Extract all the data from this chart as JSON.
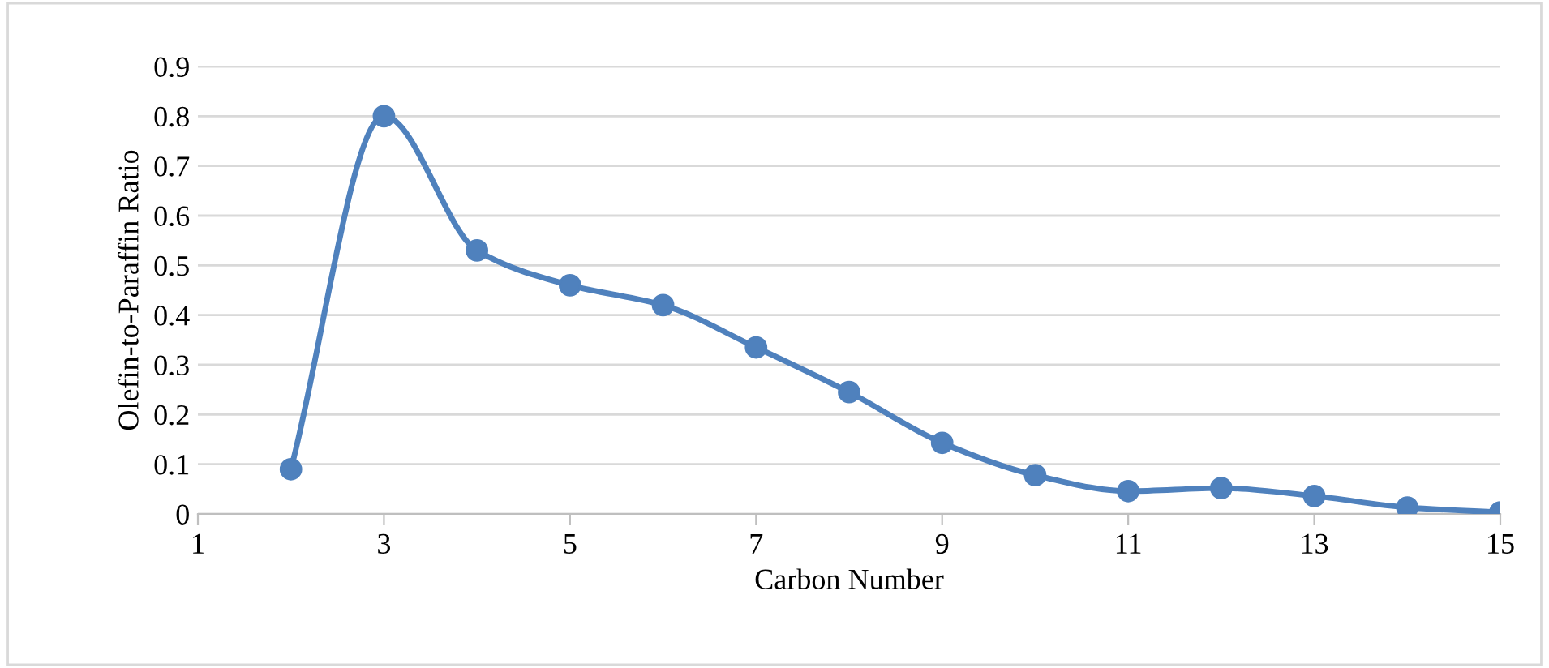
{
  "chart_data": {
    "type": "line",
    "xlabel": "Carbon Number",
    "ylabel": "Olefin-to-Paraffin Ratio",
    "x": [
      2,
      3,
      4,
      5,
      6,
      7,
      8,
      9,
      10,
      11,
      12,
      13,
      14,
      15
    ],
    "series": [
      {
        "color": "#4f81bd",
        "values": [
          0.09,
          0.8,
          0.53,
          0.46,
          0.42,
          0.335,
          0.245,
          0.143,
          0.078,
          0.046,
          0.052,
          0.036,
          0.013,
          0.003
        ]
      }
    ],
    "xlim": [
      1,
      15
    ],
    "xticks": [
      1,
      3,
      5,
      7,
      9,
      11,
      13,
      15
    ],
    "ylim": [
      0,
      0.9
    ],
    "yticks": [
      0,
      0.1,
      0.2,
      0.3,
      0.4,
      0.5,
      0.6,
      0.7,
      0.8,
      0.9
    ],
    "grid": "y",
    "marker": "circle",
    "line_style": "solid"
  }
}
